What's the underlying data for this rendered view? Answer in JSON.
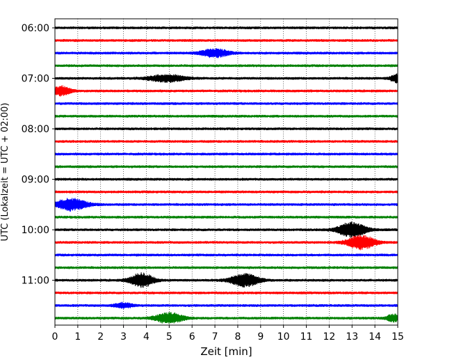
{
  "chart_data": {
    "type": "line",
    "title": "",
    "xlabel": "Zeit  [min]",
    "ylabel": "UTC (Lokalzeit = UTC + 02:00)",
    "xlim": [
      0,
      15
    ],
    "x_ticks": [
      0,
      1,
      2,
      3,
      4,
      5,
      6,
      7,
      8,
      9,
      10,
      11,
      12,
      13,
      14,
      15
    ],
    "x_tick_labels": [
      "0",
      "1",
      "2",
      "3",
      "4",
      "5",
      "6",
      "7",
      "8",
      "9",
      "10",
      "11",
      "12",
      "13",
      "14",
      "15"
    ],
    "y_tick_labels": [
      "06:00",
      "07:00",
      "08:00",
      "09:00",
      "10:00",
      "11:00"
    ],
    "grid": {
      "vertical": true,
      "style": "dotted"
    },
    "trace_interval_min": 15,
    "color_cycle": [
      "#000000",
      "#ff0000",
      "#0000ff",
      "#008000"
    ],
    "traces": [
      {
        "start": "06:00",
        "color": "#000000",
        "events": []
      },
      {
        "start": "06:15",
        "color": "#ff0000",
        "events": []
      },
      {
        "start": "06:30",
        "color": "#0000ff",
        "events": [
          {
            "t": 7.0,
            "amp": 0.35,
            "width": 0.6
          }
        ]
      },
      {
        "start": "06:45",
        "color": "#008000",
        "events": []
      },
      {
        "start": "07:00",
        "color": "#000000",
        "events": [
          {
            "t": 4.9,
            "amp": 0.3,
            "width": 0.8
          },
          {
            "t": 15.0,
            "amp": 0.35,
            "width": 0.3
          }
        ]
      },
      {
        "start": "07:15",
        "color": "#ff0000",
        "events": [
          {
            "t": 0.3,
            "amp": 0.4,
            "width": 0.4
          }
        ]
      },
      {
        "start": "07:30",
        "color": "#0000ff",
        "events": []
      },
      {
        "start": "07:45",
        "color": "#008000",
        "events": []
      },
      {
        "start": "08:00",
        "color": "#000000",
        "events": []
      },
      {
        "start": "08:15",
        "color": "#ff0000",
        "events": []
      },
      {
        "start": "08:30",
        "color": "#0000ff",
        "events": []
      },
      {
        "start": "08:45",
        "color": "#008000",
        "events": []
      },
      {
        "start": "09:00",
        "color": "#000000",
        "events": []
      },
      {
        "start": "09:15",
        "color": "#ff0000",
        "events": []
      },
      {
        "start": "09:30",
        "color": "#0000ff",
        "events": [
          {
            "t": 0.7,
            "amp": 0.5,
            "width": 0.7
          }
        ]
      },
      {
        "start": "09:45",
        "color": "#008000",
        "events": []
      },
      {
        "start": "10:00",
        "color": "#000000",
        "events": [
          {
            "t": 13.0,
            "amp": 0.65,
            "width": 0.6
          }
        ]
      },
      {
        "start": "10:15",
        "color": "#ff0000",
        "events": [
          {
            "t": 13.4,
            "amp": 0.6,
            "width": 0.6
          }
        ]
      },
      {
        "start": "10:30",
        "color": "#0000ff",
        "events": []
      },
      {
        "start": "10:45",
        "color": "#008000",
        "events": []
      },
      {
        "start": "11:00",
        "color": "#000000",
        "events": [
          {
            "t": 3.8,
            "amp": 0.6,
            "width": 0.5
          },
          {
            "t": 8.3,
            "amp": 0.55,
            "width": 0.6
          }
        ]
      },
      {
        "start": "11:15",
        "color": "#ff0000",
        "events": []
      },
      {
        "start": "11:30",
        "color": "#0000ff",
        "events": [
          {
            "t": 3.0,
            "amp": 0.2,
            "width": 0.4
          }
        ]
      },
      {
        "start": "11:45",
        "color": "#008000",
        "events": [
          {
            "t": 5.0,
            "amp": 0.45,
            "width": 0.6
          },
          {
            "t": 14.8,
            "amp": 0.3,
            "width": 0.3
          }
        ]
      }
    ]
  }
}
